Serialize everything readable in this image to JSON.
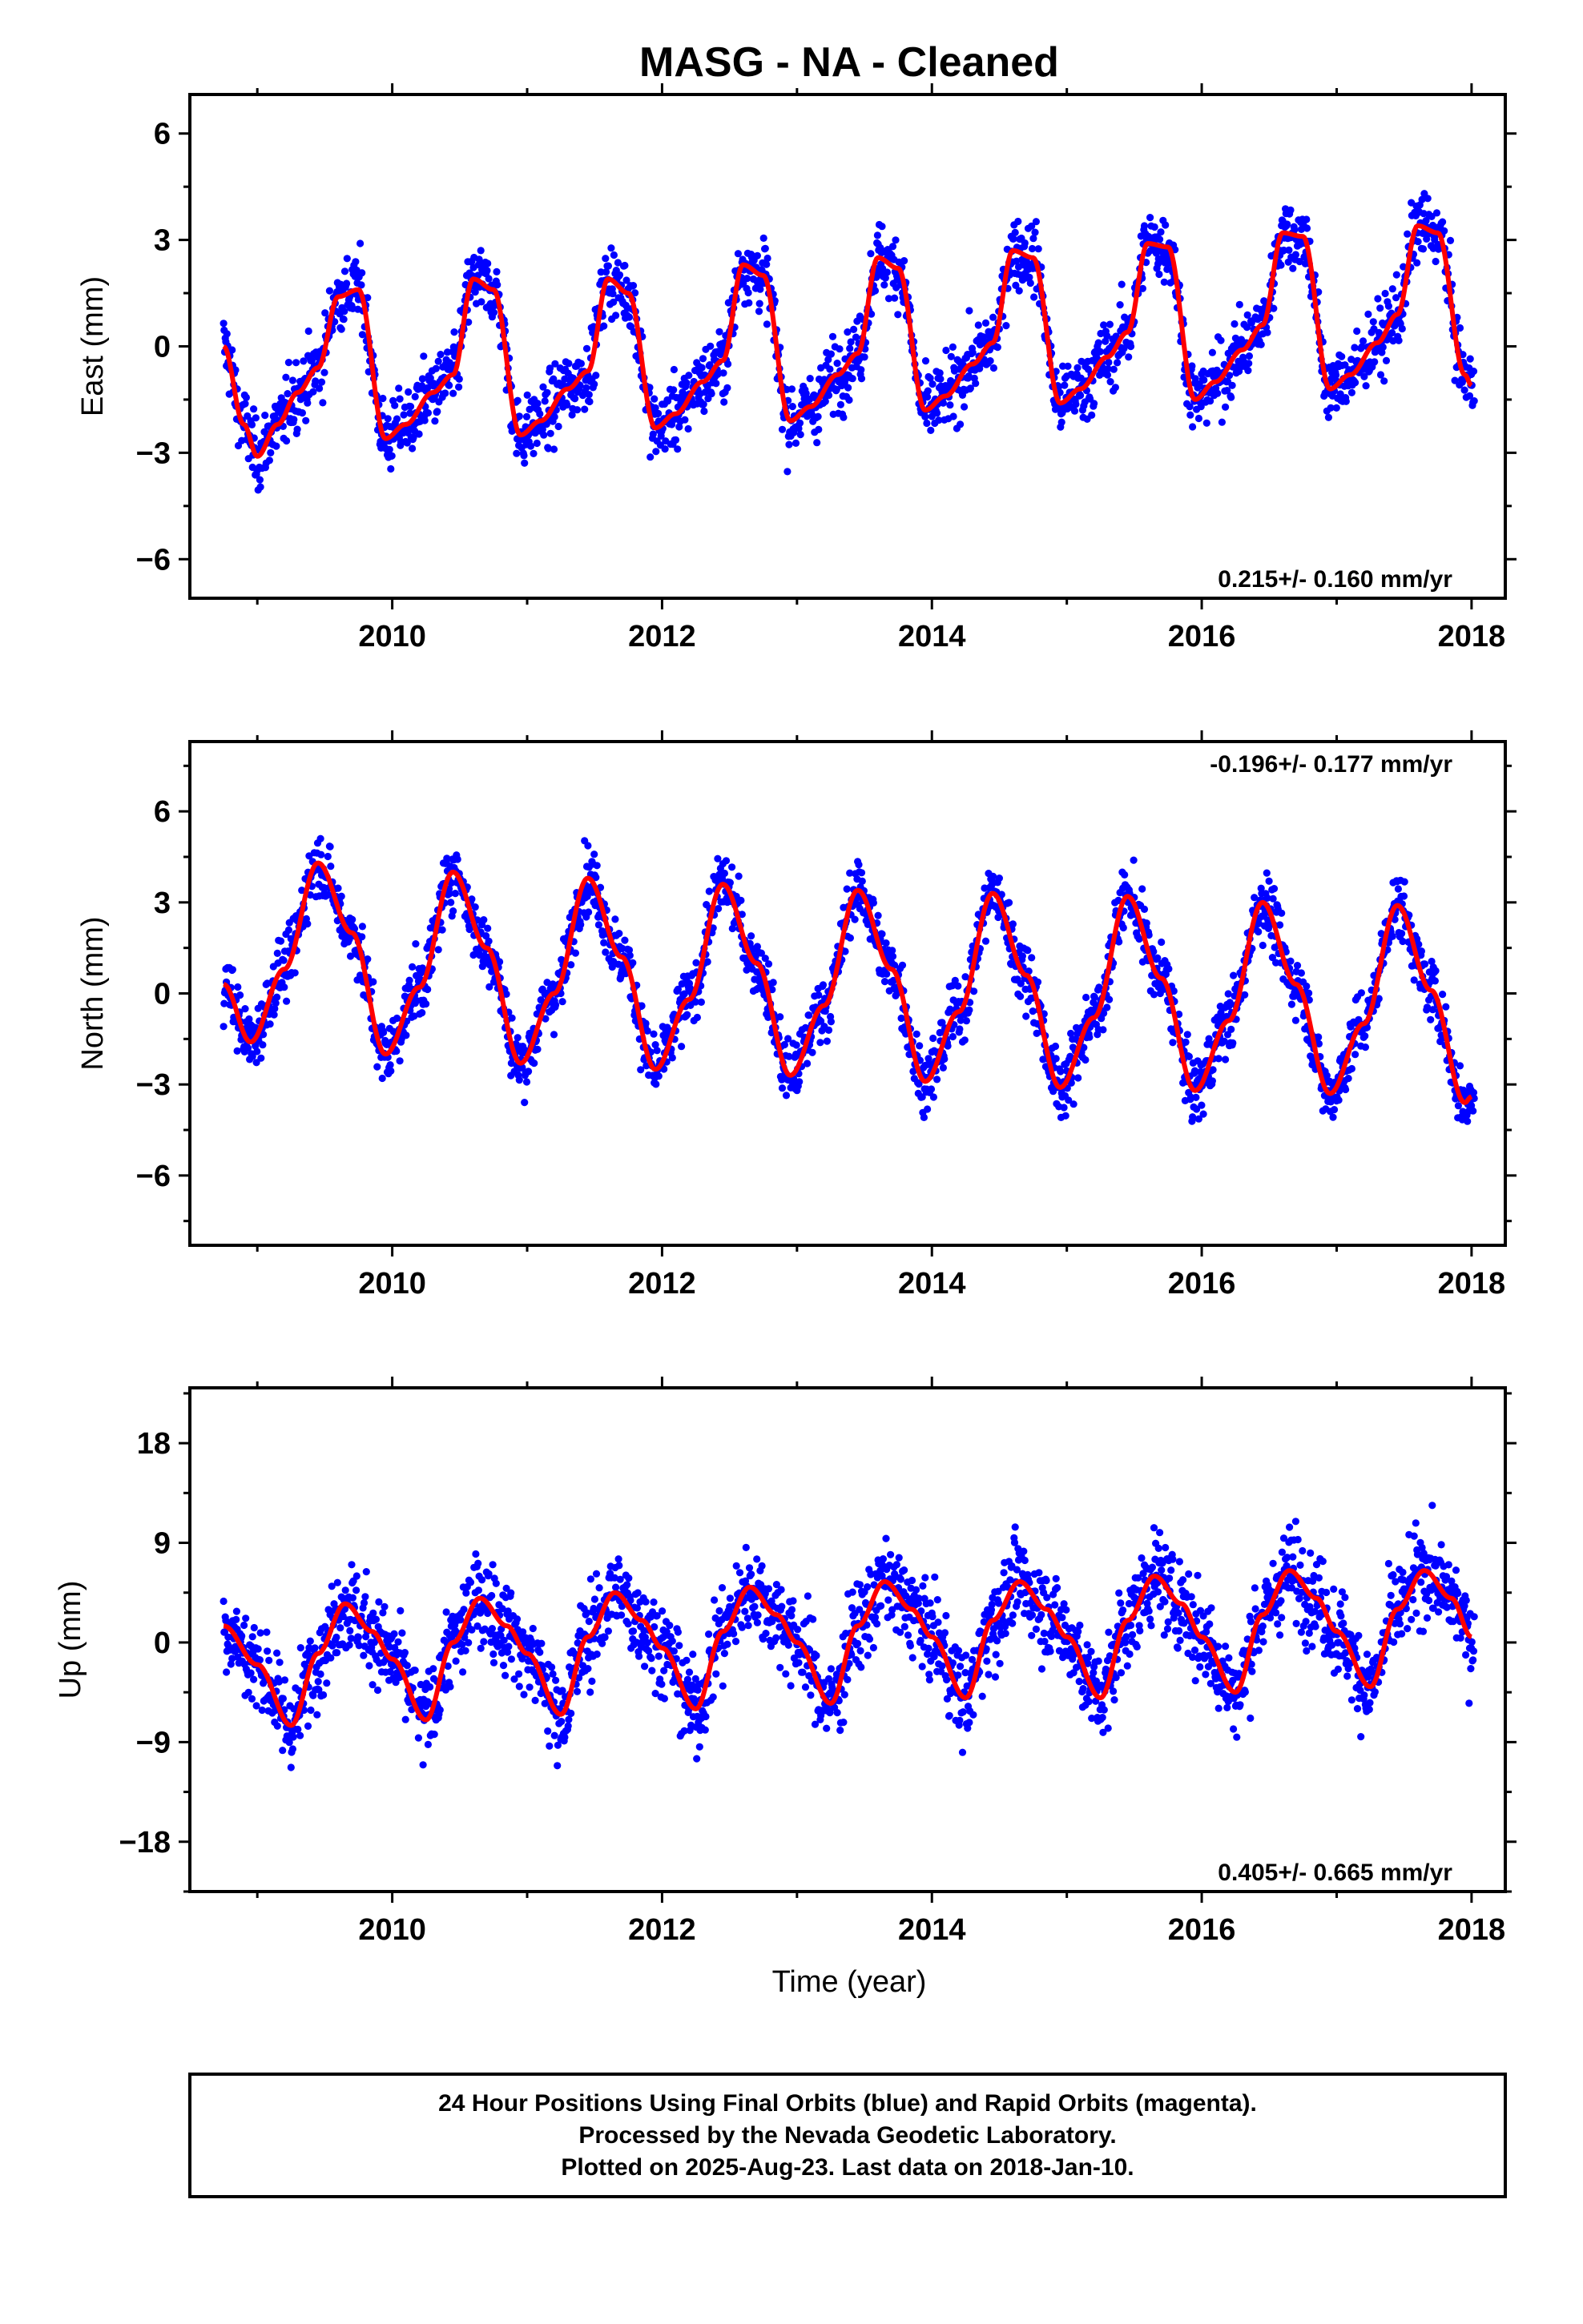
{
  "title": "MASG  - NA - Cleaned",
  "xlabel": "Time (year)",
  "x_ticks": [
    "2010",
    "2012",
    "2014",
    "2016",
    "2018"
  ],
  "colors": {
    "points": "#0000ff",
    "fit": "#ff0000",
    "frame": "#000000"
  },
  "footer": {
    "line1": "24 Hour Positions Using Final Orbits (blue) and Rapid Orbits (magenta).",
    "line2": "Processed by the Nevada Geodetic Laboratory.",
    "line3": "Plotted on 2025-Aug-23. Last data on 2018-Jan-10."
  },
  "chart_data": [
    {
      "type": "scatter",
      "title": "MASG  - NA - Cleaned",
      "ylabel": "East (mm)",
      "xlabel": "",
      "xlim": [
        2008.5,
        2018.25
      ],
      "ylim": [
        -7.1,
        7.1
      ],
      "x_ticks": [
        2010,
        2012,
        2014,
        2016,
        2018
      ],
      "y_ticks": [
        6,
        3,
        0,
        -3,
        -6
      ],
      "y_tick_labels": [
        "6",
        "3",
        "0",
        "−3",
        "−6"
      ],
      "rate_label": "0.215+/- 0.160 mm/yr",
      "rate_position": "bottom-right",
      "grid": false,
      "series": [
        {
          "x": [
            2008.75,
            2008.9,
            2009.0,
            2009.15,
            2009.3,
            2009.45,
            2009.6,
            2009.75,
            2009.95,
            2010.1,
            2010.3,
            2010.45,
            2010.6,
            2010.75,
            2010.95,
            2011.1,
            2011.3,
            2011.45,
            2011.6,
            2011.75,
            2011.95,
            2012.1,
            2012.3,
            2012.45,
            2012.6,
            2012.75,
            2012.95,
            2013.1,
            2013.3,
            2013.45,
            2013.6,
            2013.75,
            2013.95,
            2014.1,
            2014.3,
            2014.45,
            2014.6,
            2014.75,
            2014.95,
            2015.1,
            2015.3,
            2015.45,
            2015.6,
            2015.75,
            2015.95,
            2016.1,
            2016.3,
            2016.45,
            2016.6,
            2016.75,
            2016.95,
            2017.1,
            2017.3,
            2017.45,
            2017.6,
            2017.75,
            2017.95,
            2018.0
          ],
          "y": [
            0.0,
            -2.2,
            -3.1,
            -2.2,
            -1.3,
            -0.6,
            1.4,
            1.6,
            -2.6,
            -2.2,
            -1.3,
            -0.8,
            1.9,
            1.6,
            -2.5,
            -2.1,
            -1.2,
            -0.7,
            1.9,
            1.5,
            -2.3,
            -1.9,
            -1.0,
            -0.4,
            2.3,
            2.0,
            -2.1,
            -1.7,
            -0.8,
            -0.2,
            2.5,
            2.2,
            -1.8,
            -1.4,
            -0.5,
            0.1,
            2.7,
            2.5,
            -1.6,
            -1.2,
            -0.3,
            0.4,
            2.9,
            2.8,
            -1.5,
            -1.0,
            -0.1,
            0.6,
            3.2,
            3.1,
            -1.2,
            -0.8,
            0.1,
            0.9,
            3.4,
            3.2,
            -0.8,
            -1.1
          ]
        }
      ]
    },
    {
      "type": "scatter",
      "ylabel": "North (mm)",
      "xlabel": "",
      "xlim": [
        2008.5,
        2018.25
      ],
      "ylim": [
        -8.3,
        8.3
      ],
      "x_ticks": [
        2010,
        2012,
        2014,
        2016,
        2018
      ],
      "y_ticks": [
        6,
        3,
        0,
        -3,
        -6
      ],
      "y_tick_labels": [
        "6",
        "3",
        "0",
        "−3",
        "−6"
      ],
      "rate_label": "-0.196+/- 0.177 mm/yr",
      "rate_position": "top-right",
      "grid": false,
      "series": [
        {
          "x": [
            2008.75,
            2008.95,
            2009.2,
            2009.45,
            2009.7,
            2009.95,
            2010.2,
            2010.45,
            2010.7,
            2010.95,
            2011.2,
            2011.45,
            2011.7,
            2011.95,
            2012.2,
            2012.45,
            2012.7,
            2012.95,
            2013.2,
            2013.45,
            2013.7,
            2013.95,
            2014.2,
            2014.45,
            2014.7,
            2014.95,
            2015.2,
            2015.45,
            2015.7,
            2015.95,
            2016.2,
            2016.45,
            2016.7,
            2016.95,
            2017.2,
            2017.45,
            2017.7,
            2017.95,
            2018.0
          ],
          "y": [
            0.3,
            -1.6,
            0.8,
            4.3,
            2.0,
            -2.0,
            0.2,
            4.0,
            1.5,
            -2.3,
            0.0,
            3.8,
            1.2,
            -2.5,
            -0.2,
            3.6,
            1.0,
            -2.7,
            -0.4,
            3.4,
            0.8,
            -2.9,
            -0.6,
            3.3,
            0.6,
            -3.1,
            -0.8,
            3.2,
            0.5,
            -3.2,
            -0.9,
            3.0,
            0.3,
            -3.3,
            -1.0,
            2.9,
            0.1,
            -3.6,
            -3.4
          ]
        }
      ]
    },
    {
      "type": "scatter",
      "ylabel": "Up (mm)",
      "xlabel": "Time (year)",
      "xlim": [
        2008.5,
        2018.25
      ],
      "ylim": [
        -22.5,
        23.0
      ],
      "x_ticks": [
        2010,
        2012,
        2014,
        2016,
        2018
      ],
      "y_ticks": [
        18,
        9,
        0,
        -9,
        -18
      ],
      "y_tick_labels": [
        "18",
        "9",
        "0",
        "−9",
        "−18"
      ],
      "rate_label": "0.405+/- 0.665 mm/yr",
      "rate_position": "bottom-right",
      "grid": false,
      "series": [
        {
          "x": [
            2008.75,
            2009.0,
            2009.25,
            2009.45,
            2009.65,
            2009.85,
            2010.0,
            2010.25,
            2010.45,
            2010.65,
            2010.85,
            2011.0,
            2011.25,
            2011.45,
            2011.65,
            2011.85,
            2012.0,
            2012.25,
            2012.45,
            2012.65,
            2012.85,
            2013.0,
            2013.25,
            2013.45,
            2013.65,
            2013.85,
            2014.0,
            2014.25,
            2014.45,
            2014.65,
            2014.85,
            2015.0,
            2015.25,
            2015.45,
            2015.65,
            2015.85,
            2016.0,
            2016.25,
            2016.45,
            2016.65,
            2016.85,
            2017.0,
            2017.25,
            2017.45,
            2017.65,
            2017.85,
            2018.0
          ],
          "y": [
            1.5,
            -2.0,
            -7.5,
            -1.0,
            3.5,
            1.0,
            -1.5,
            -7.0,
            0.0,
            4.0,
            1.5,
            -1.0,
            -6.5,
            0.5,
            4.5,
            2.0,
            -0.5,
            -6.0,
            1.0,
            5.0,
            2.5,
            0.0,
            -5.5,
            1.5,
            5.5,
            3.0,
            0.5,
            -5.0,
            2.0,
            5.5,
            3.0,
            0.5,
            -5.0,
            2.0,
            6.0,
            3.5,
            0.5,
            -4.5,
            2.5,
            6.5,
            4.0,
            1.0,
            -4.0,
            3.0,
            6.5,
            4.0,
            0.5
          ]
        }
      ]
    }
  ]
}
